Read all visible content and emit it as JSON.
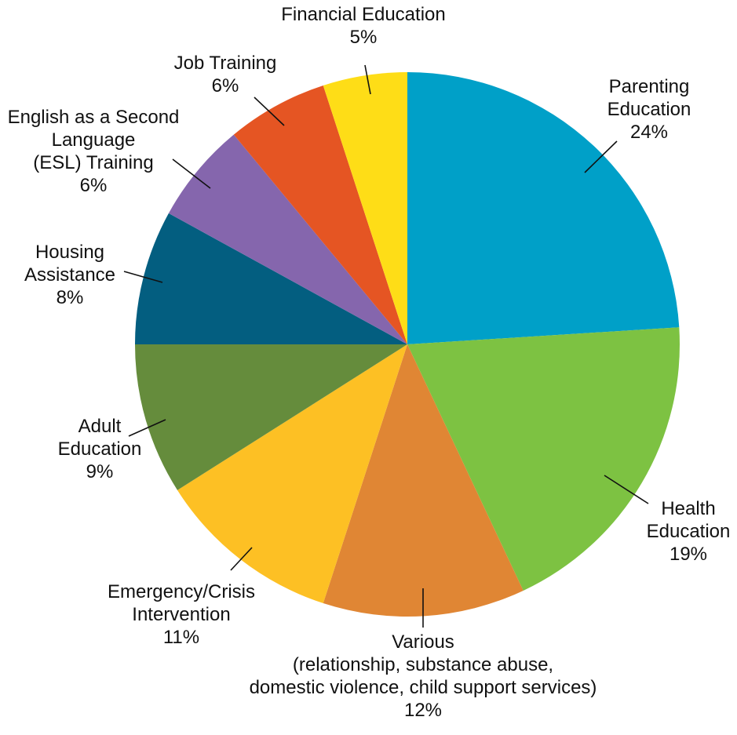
{
  "chart_data": {
    "type": "pie",
    "title": "",
    "start": "12 o'clock",
    "direction": "clockwise",
    "slices": [
      {
        "name": "Parenting Education",
        "value": 24,
        "value_label": "24%",
        "label_lines": [
          "Parenting",
          "Education",
          "24%"
        ],
        "color": "#00A0C8"
      },
      {
        "name": "Health Education",
        "value": 19,
        "value_label": "19%",
        "label_lines": [
          "Health",
          "Education",
          "19%"
        ],
        "color": "#7DC242"
      },
      {
        "name": "Various (relationship, substance abuse, domestic violence, child support services)",
        "value": 12,
        "value_label": "12%",
        "label_lines": [
          "Various",
          "(relationship, substance abuse,",
          "domestic violence, child support services)",
          "12%"
        ],
        "color": "#E08634"
      },
      {
        "name": "Emergency/Crisis Intervention",
        "value": 11,
        "value_label": "11%",
        "label_lines": [
          "Emergency/Crisis",
          "Intervention",
          "11%"
        ],
        "color": "#FDC024"
      },
      {
        "name": "Adult Education",
        "value": 9,
        "value_label": "9%",
        "label_lines": [
          "Adult",
          "Education",
          "9%"
        ],
        "color": "#658C3C"
      },
      {
        "name": "Housing Assistance",
        "value": 8,
        "value_label": "8%",
        "label_lines": [
          "Housing",
          "Assistance",
          "8%"
        ],
        "color": "#035E80"
      },
      {
        "name": "English as a Second Language (ESL) Training",
        "value": 6,
        "value_label": "6%",
        "label_lines": [
          "English as a Second",
          "Language",
          "(ESL)  Training",
          "6%"
        ],
        "color": "#8566AD"
      },
      {
        "name": "Job Training",
        "value": 6,
        "value_label": "6%",
        "label_lines": [
          "Job Training",
          "6%"
        ],
        "color": "#E55523"
      },
      {
        "name": "Financial Education",
        "value": 5,
        "value_label": "5%",
        "label_lines": [
          "Financial Education",
          "5%"
        ],
        "color": "#FEDD17"
      }
    ]
  }
}
